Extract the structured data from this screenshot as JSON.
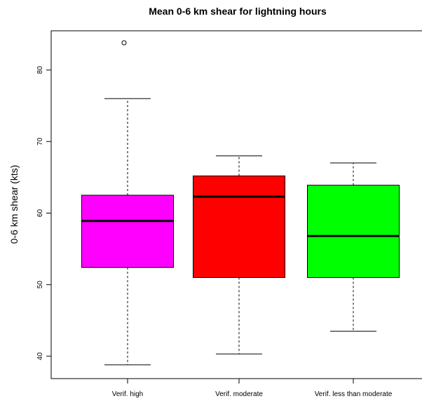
{
  "chart_data": {
    "type": "box",
    "title": "Mean 0-6 km shear for lightning hours",
    "xlabel": "",
    "ylabel": "0-6 km shear (kts)",
    "categories": [
      "Verif. high",
      "Verif. moderate",
      "Verif. less than moderate"
    ],
    "y_ticks": [
      40,
      50,
      60,
      70,
      80
    ],
    "ylim": [
      37,
      87
    ],
    "grid": false,
    "legend": "none",
    "boxes": [
      {
        "category": "Verif. high",
        "whisker_low": 38.8,
        "q1": 52.4,
        "median": 58.9,
        "q3": 62.5,
        "whisker_high": 76.0,
        "outliers": [
          83.8
        ],
        "color": "#ff00ff"
      },
      {
        "category": "Verif. moderate",
        "whisker_low": 40.3,
        "q1": 51.0,
        "median": 62.3,
        "q3": 65.2,
        "whisker_high": 68.0,
        "outliers": [],
        "color": "#ff0000"
      },
      {
        "category": "Verif. less than moderate",
        "whisker_low": 43.5,
        "q1": 51.0,
        "median": 56.8,
        "q3": 63.9,
        "whisker_high": 67.0,
        "outliers": [],
        "color": "#00ff00"
      }
    ]
  }
}
